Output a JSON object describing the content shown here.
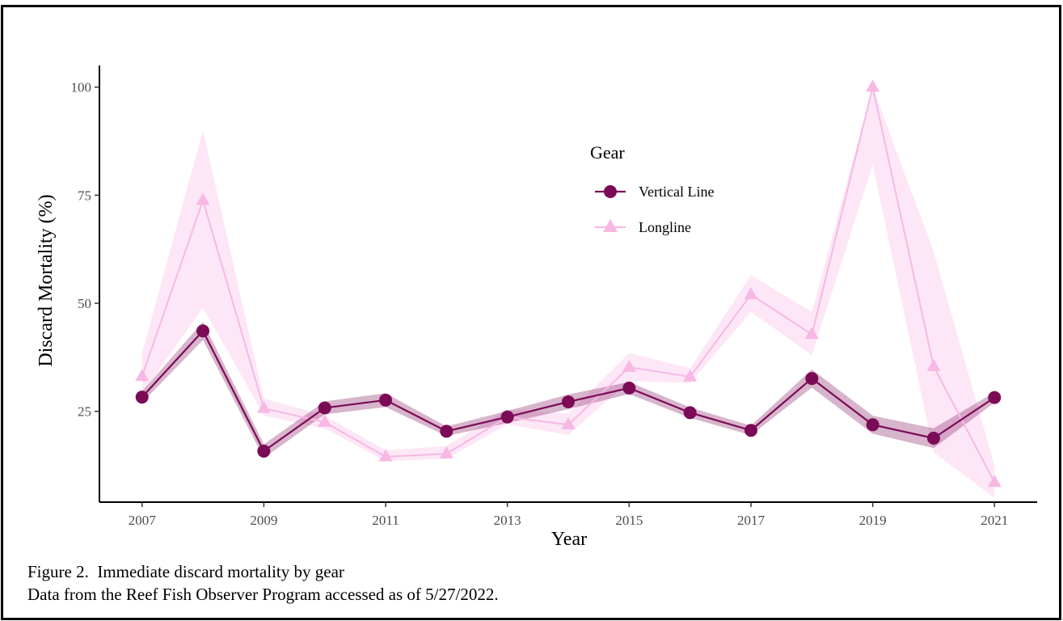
{
  "figure": {
    "caption_line1": "Figure 2.  Immediate discard mortality by gear",
    "caption_line2": "Data from the Reef Fish Observer Program accessed as of 5/27/2022."
  },
  "chart_data": {
    "type": "line",
    "title": "",
    "xlabel": "Year",
    "ylabel": "Discard Mortality (%)",
    "x": [
      2007,
      2008,
      2009,
      2010,
      2011,
      2012,
      2013,
      2014,
      2015,
      2016,
      2017,
      2018,
      2019,
      2020,
      2021
    ],
    "xticks": [
      2007,
      2009,
      2011,
      2013,
      2015,
      2017,
      2019,
      2021
    ],
    "yticks": [
      25,
      50,
      75,
      100
    ],
    "xlim": [
      2006.3,
      2021.7
    ],
    "ylim": [
      4,
      105
    ],
    "grid": false,
    "legend": {
      "title": "Gear",
      "position": "top-center"
    },
    "series": [
      {
        "name": "Vertical Line",
        "marker": "circle",
        "color": "#7b0b56",
        "band_color": "#7b0b56",
        "values": [
          28.3,
          43.6,
          15.8,
          25.8,
          27.6,
          20.4,
          23.7,
          27.2,
          30.4,
          24.7,
          20.6,
          32.6,
          21.9,
          18.8,
          28.2
        ],
        "lower": [
          27.0,
          41.5,
          14.2,
          24.3,
          26.0,
          19.3,
          22.3,
          25.5,
          29.0,
          23.5,
          19.5,
          30.5,
          19.8,
          16.5,
          27.0
        ],
        "upper": [
          29.6,
          45.7,
          17.4,
          27.3,
          29.2,
          21.5,
          25.1,
          28.9,
          31.8,
          25.9,
          21.7,
          34.7,
          24.0,
          21.1,
          29.4
        ]
      },
      {
        "name": "Longline",
        "marker": "triangle",
        "color": "#f7b8e4",
        "band_color": "#fbd4ef",
        "values": [
          33.1,
          73.8,
          25.7,
          22.5,
          14.5,
          15.2,
          23.7,
          21.9,
          35.2,
          33.0,
          52.0,
          42.8,
          100.0,
          35.4,
          8.6
        ],
        "lower": [
          29.0,
          49.0,
          24.0,
          21.0,
          13.5,
          14.0,
          22.0,
          19.5,
          32.0,
          31.5,
          48.0,
          38.0,
          82.0,
          15.5,
          5.0
        ],
        "upper": [
          38.5,
          90.0,
          28.0,
          24.0,
          16.0,
          17.0,
          25.5,
          24.5,
          38.5,
          35.0,
          56.5,
          48.0,
          100.0,
          62.0,
          12.5
        ]
      }
    ]
  }
}
